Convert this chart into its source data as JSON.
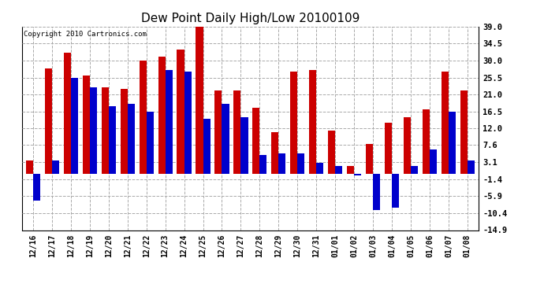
{
  "title": "Dew Point Daily High/Low 20100109",
  "copyright": "Copyright 2010 Cartronics.com",
  "dates": [
    "12/16",
    "12/17",
    "12/18",
    "12/19",
    "12/20",
    "12/21",
    "12/22",
    "12/23",
    "12/24",
    "12/25",
    "12/26",
    "12/27",
    "12/28",
    "12/29",
    "12/30",
    "12/31",
    "01/01",
    "01/02",
    "01/03",
    "01/04",
    "01/05",
    "01/06",
    "01/07",
    "01/08"
  ],
  "highs": [
    3.5,
    28.0,
    32.0,
    26.0,
    23.0,
    22.5,
    30.0,
    31.0,
    33.0,
    39.0,
    22.0,
    22.0,
    17.5,
    11.0,
    27.0,
    27.5,
    11.5,
    2.0,
    8.0,
    13.5,
    15.0,
    17.0,
    27.0,
    22.0
  ],
  "lows": [
    -7.0,
    3.5,
    25.5,
    23.0,
    18.0,
    18.5,
    16.5,
    27.5,
    27.0,
    14.5,
    18.5,
    15.0,
    5.0,
    5.5,
    5.5,
    3.0,
    2.0,
    -0.5,
    -9.5,
    -9.0,
    2.0,
    6.5,
    16.5,
    3.5
  ],
  "high_color": "#cc0000",
  "low_color": "#0000cc",
  "bg_color": "#ffffff",
  "grid_color": "#aaaaaa",
  "ylim": [
    -14.9,
    39.0
  ],
  "yticks": [
    -14.9,
    -10.4,
    -5.9,
    -1.4,
    3.1,
    7.6,
    12.0,
    16.5,
    21.0,
    25.5,
    30.0,
    34.5,
    39.0
  ],
  "bar_width": 0.38,
  "figsize": [
    6.9,
    3.75
  ],
  "dpi": 100
}
